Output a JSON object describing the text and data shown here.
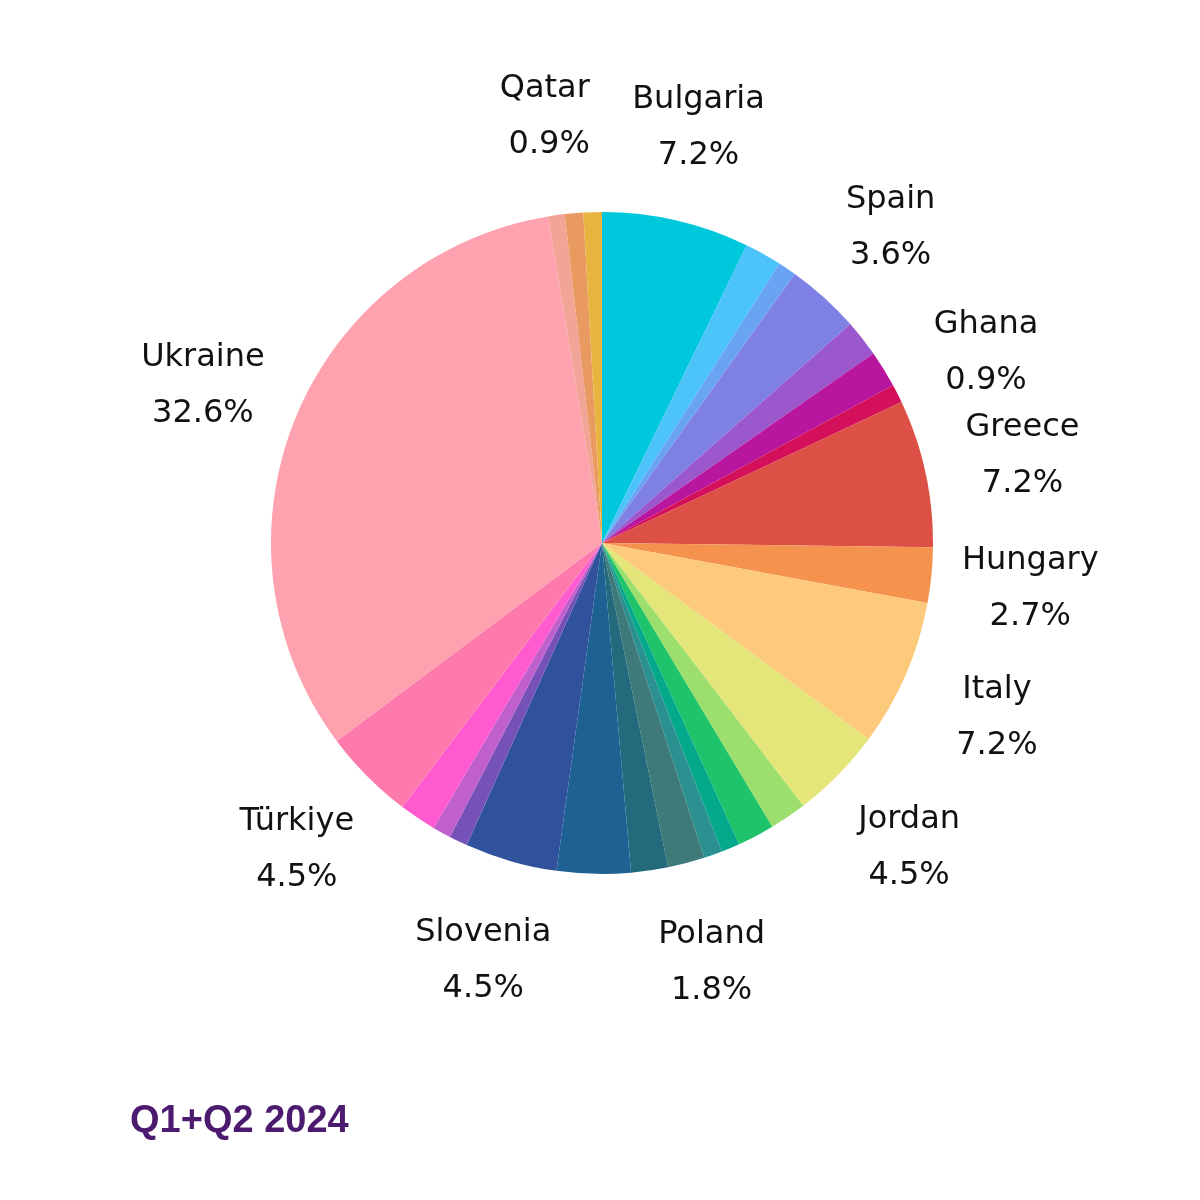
{
  "chart_data": {
    "type": "pie",
    "title": "Q1+Q2 2024",
    "categories": [
      "Bulgaria",
      null,
      null,
      "Spain",
      null,
      null,
      "Ghana",
      "Greece",
      "Hungary",
      "Italy",
      "Jordan",
      null,
      null,
      null,
      null,
      "Poland",
      null,
      null,
      "Slovenia",
      null,
      null,
      null,
      "Türkiye",
      "Ukraine",
      null,
      null,
      "Qatar"
    ],
    "values": [
      7.2,
      1.8,
      0.9,
      3.6,
      1.8,
      1.8,
      0.9,
      7.2,
      2.7,
      7.2,
      4.5,
      1.8,
      1.8,
      0.9,
      0.9,
      1.8,
      1.8,
      3.6,
      4.5,
      0.9,
      0.9,
      1.8,
      4.5,
      32.6,
      0.8,
      0.9,
      0.9
    ],
    "value_labels": [
      "7.2%",
      null,
      null,
      "3.6%",
      null,
      null,
      "0.9%",
      "7.2%",
      "2.7%",
      "7.2%",
      "4.5%",
      null,
      null,
      null,
      null,
      "1.8%",
      null,
      null,
      "4.5%",
      null,
      null,
      null,
      "4.5%",
      "32.6%",
      null,
      null,
      "0.9%"
    ],
    "colors": [
      "#00c8dc",
      "#4cc4fa",
      "#68a4f2",
      "#7f80e4",
      "#9b58cc",
      "#b8169e",
      "#d5105a",
      "#dd5046",
      "#f4924e",
      "#fdc97a",
      "#e4e67a",
      "#9ddf6c",
      "#1fc46a",
      "#04a88a",
      "#2a9090",
      "#3e7a7a",
      "#236b7c",
      "#1e6294",
      "#30529c",
      "#7652b8",
      "#c060cc",
      "#ff5ad0",
      "#ff7aac",
      "#fda2ae",
      "#f2a596",
      "#e89a60",
      "#e8b440"
    ]
  }
}
